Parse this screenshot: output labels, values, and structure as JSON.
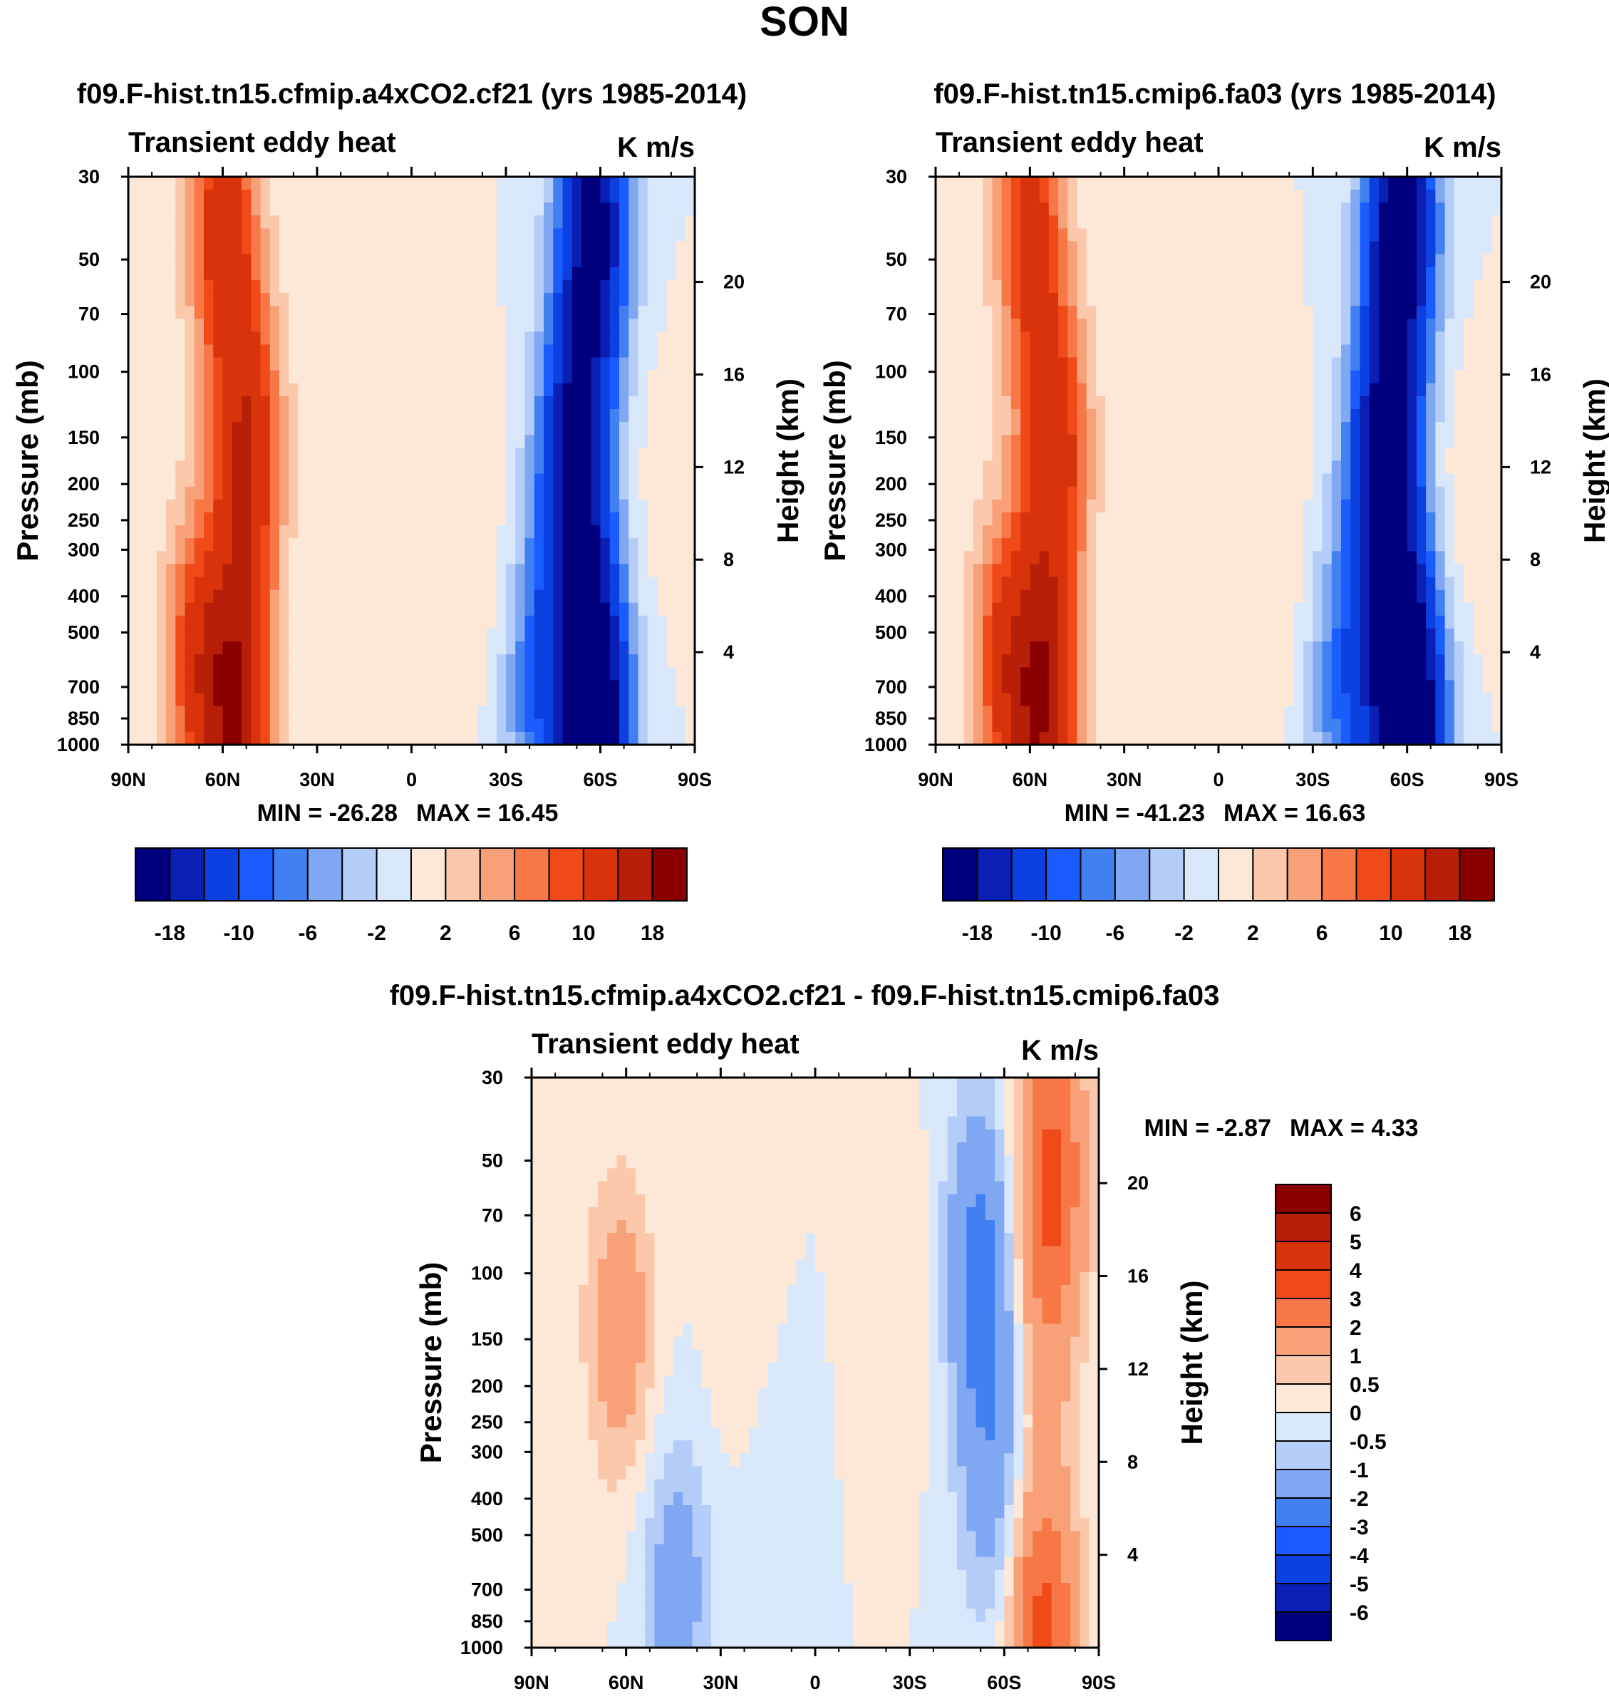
{
  "figure": {
    "main_title": "SON"
  },
  "chart_data": [
    {
      "type": "contour",
      "title": "f09.F-hist.tn15.cfmip.a4xCO2.cf21 (yrs 1985-2014)",
      "left_string": "Transient eddy heat",
      "right_string": "K m/s",
      "xlabel": "",
      "ylabel": "Pressure (mb)",
      "ylabel_right": "Height (km)",
      "x_ticks": [
        "90N",
        "60N",
        "30N",
        "0",
        "30S",
        "60S",
        "90S"
      ],
      "x_range": [
        90,
        -90
      ],
      "y_ticks": [
        30,
        50,
        70,
        100,
        150,
        200,
        250,
        300,
        400,
        500,
        700,
        850,
        1000
      ],
      "y_range": [
        30,
        1000
      ],
      "y_right_ticks": [
        20,
        16,
        12,
        8,
        4
      ],
      "min": -26.28,
      "max": 16.45,
      "min_label": "MIN = -26.28",
      "max_label": "MAX =  16.45",
      "levels": [
        -18,
        -14,
        -10,
        -8,
        -6,
        -4,
        -2,
        0,
        2,
        4,
        6,
        8,
        10,
        14,
        18
      ],
      "colorbar_labels": [
        "-18",
        "-10",
        "-6",
        "-2",
        "2",
        "6",
        "10",
        "18"
      ],
      "colorbar_orientation": "horizontal",
      "features": [
        {
          "lat": 60,
          "p": 40,
          "v": 12
        },
        {
          "lat": 52,
          "p": 160,
          "v": 13
        },
        {
          "lat": 55,
          "p": 820,
          "v": 16
        },
        {
          "lat": 68,
          "p": 600,
          "v": 10
        },
        {
          "lat": -58,
          "p": 40,
          "v": -20
        },
        {
          "lat": -52,
          "p": 180,
          "v": -20
        },
        {
          "lat": -58,
          "p": 850,
          "v": -26
        },
        {
          "lat": -40,
          "p": 700,
          "v": -8
        },
        {
          "lat": -20,
          "p": 300,
          "v": 2
        },
        {
          "lat": -75,
          "p": 200,
          "v": 1
        }
      ]
    },
    {
      "type": "contour",
      "title": "f09.F-hist.tn15.cmip6.fa03 (yrs 1985-2014)",
      "left_string": "Transient eddy heat",
      "right_string": "K m/s",
      "xlabel": "",
      "ylabel": "Pressure (mb)",
      "ylabel_right": "Height (km)",
      "x_ticks": [
        "90N",
        "60N",
        "30N",
        "0",
        "30S",
        "60S",
        "90S"
      ],
      "x_range": [
        90,
        -90
      ],
      "y_ticks": [
        30,
        50,
        70,
        100,
        150,
        200,
        250,
        300,
        400,
        500,
        700,
        850,
        1000
      ],
      "y_range": [
        30,
        1000
      ],
      "y_right_ticks": [
        20,
        16,
        12,
        8,
        4
      ],
      "min": -41.23,
      "max": 16.63,
      "min_label": "MIN = -41.23",
      "max_label": "MAX =  16.63",
      "levels": [
        -18,
        -14,
        -10,
        -8,
        -6,
        -4,
        -2,
        0,
        2,
        4,
        6,
        8,
        10,
        14,
        18
      ],
      "colorbar_labels": [
        "-18",
        "-10",
        "-6",
        "-2",
        "2",
        "6",
        "10",
        "18"
      ],
      "colorbar_orientation": "horizontal",
      "features": [
        {
          "lat": 60,
          "p": 40,
          "v": 11
        },
        {
          "lat": 52,
          "p": 160,
          "v": 12
        },
        {
          "lat": 55,
          "p": 820,
          "v": 16
        },
        {
          "lat": 68,
          "p": 600,
          "v": 10
        },
        {
          "lat": -58,
          "p": 40,
          "v": -22
        },
        {
          "lat": -53,
          "p": 190,
          "v": -22
        },
        {
          "lat": -60,
          "p": 860,
          "v": -30
        },
        {
          "lat": -40,
          "p": 700,
          "v": -8
        },
        {
          "lat": -18,
          "p": 300,
          "v": 2
        },
        {
          "lat": -75,
          "p": 220,
          "v": 1.5
        }
      ]
    },
    {
      "type": "contour",
      "title": "f09.F-hist.tn15.cfmip.a4xCO2.cf21 - f09.F-hist.tn15.cmip6.fa03",
      "left_string": "Transient eddy heat",
      "right_string": "K m/s",
      "xlabel": "",
      "ylabel": "Pressure (mb)",
      "ylabel_right": "Height (km)",
      "x_ticks": [
        "90N",
        "60N",
        "30N",
        "0",
        "30S",
        "60S",
        "90S"
      ],
      "x_range": [
        90,
        -90
      ],
      "y_ticks": [
        30,
        50,
        70,
        100,
        150,
        200,
        250,
        300,
        400,
        500,
        700,
        850,
        1000
      ],
      "y_range": [
        30,
        1000
      ],
      "y_right_ticks": [
        20,
        16,
        12,
        8,
        4
      ],
      "min": -2.87,
      "max": 4.33,
      "min_label": "MIN =  -2.87",
      "max_label": "MAX =   4.33",
      "levels": [
        -6,
        -5,
        -4,
        -3,
        -2,
        -1,
        -0.5,
        0,
        0.5,
        1,
        2,
        3,
        4,
        5,
        6
      ],
      "colorbar_labels": [
        "6",
        "5",
        "4",
        "3",
        "2",
        "1",
        "0.5",
        "0",
        "-0.5",
        "-1",
        "-2",
        "-3",
        "-4",
        "-5",
        "-6"
      ],
      "colorbar_orientation": "vertical",
      "features": [
        {
          "lat": 62,
          "p": 140,
          "v": 1.6
        },
        {
          "lat": -75,
          "p": 50,
          "v": 3.0
        },
        {
          "lat": -72,
          "p": 130,
          "v": 1.2
        },
        {
          "lat": -52,
          "p": 80,
          "v": -1.6
        },
        {
          "lat": -55,
          "p": 150,
          "v": -1.4
        },
        {
          "lat": -57,
          "p": 420,
          "v": -1.2
        },
        {
          "lat": 44,
          "p": 700,
          "v": -1.5
        },
        {
          "lat": -72,
          "p": 920,
          "v": 3.5
        },
        {
          "lat": 25,
          "p": 150,
          "v": 0.3
        },
        {
          "lat": -27,
          "p": 110,
          "v": 0.4
        },
        {
          "lat": 15,
          "p": 450,
          "v": -0.3
        }
      ]
    }
  ],
  "colors": {
    "diverging": [
      "#00007f",
      "#0a1fb4",
      "#0d40e0",
      "#1b5cff",
      "#4080f0",
      "#80a8f2",
      "#b4ccf8",
      "#d8e8fa",
      "#fde8d8",
      "#fbc8ac",
      "#f8a078",
      "#f77846",
      "#f04a19",
      "#d8330a",
      "#b81f08",
      "#8a0000"
    ]
  }
}
